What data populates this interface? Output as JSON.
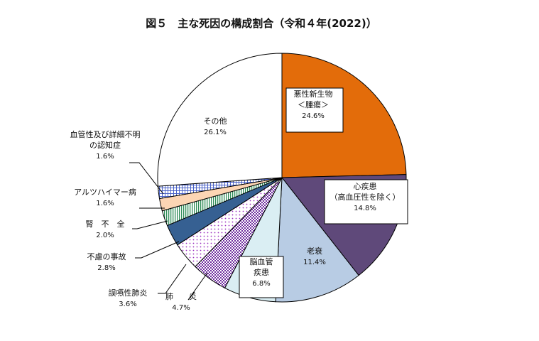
{
  "chart_data": {
    "type": "pie",
    "title": "図５　主な死因の構成割合（令和４年(2022)）",
    "slices": [
      {
        "key": "cancer",
        "lines": [
          "悪性新生物",
          "＜腫瘍＞"
        ],
        "pct_label": "24.6%",
        "value": 24.6,
        "color": "#e36c0a",
        "pattern": "solid"
      },
      {
        "key": "heart",
        "lines": [
          "心疾患",
          "（高血圧性を除く）"
        ],
        "pct_label": "14.8%",
        "value": 14.8,
        "color": "#5f497a",
        "pattern": "solid"
      },
      {
        "key": "senility",
        "lines": [
          "老衰"
        ],
        "pct_label": "11.4%",
        "value": 11.4,
        "color": "#b8cce4",
        "pattern": "solid"
      },
      {
        "key": "stroke",
        "lines": [
          "脳血管",
          "疾患"
        ],
        "pct_label": "6.8%",
        "value": 6.8,
        "color": "#daeef3",
        "pattern": "solid"
      },
      {
        "key": "pneumonia",
        "lines": [
          "肺　　炎"
        ],
        "pct_label": "4.7%",
        "value": 4.7,
        "color": "#7030a0",
        "pattern": "checker"
      },
      {
        "key": "aspiration",
        "lines": [
          "誤嚥性肺炎"
        ],
        "pct_label": "3.6%",
        "value": 3.6,
        "color": "#e6b9f0",
        "pattern": "dots"
      },
      {
        "key": "accident",
        "lines": [
          "不慮の事故"
        ],
        "pct_label": "2.8%",
        "value": 2.8,
        "color": "#366092",
        "pattern": "solid"
      },
      {
        "key": "kidney",
        "lines": [
          "腎　不　全"
        ],
        "pct_label": "2.0%",
        "value": 2.0,
        "color": "#4bacc6",
        "pattern": "vstripe"
      },
      {
        "key": "alzheimer",
        "lines": [
          "アルツハイマー病"
        ],
        "pct_label": "1.6%",
        "value": 1.6,
        "color": "#fcd5b4",
        "pattern": "solid"
      },
      {
        "key": "dementia",
        "lines": [
          "血管性及び詳細不明",
          "の認知症"
        ],
        "pct_label": "1.6%",
        "value": 1.6,
        "color": "#8ea9db",
        "pattern": "grid"
      },
      {
        "key": "other",
        "lines": [
          "その他"
        ],
        "pct_label": "26.1%",
        "value": 26.1,
        "color": "#ffffff",
        "pattern": "solid"
      }
    ]
  }
}
